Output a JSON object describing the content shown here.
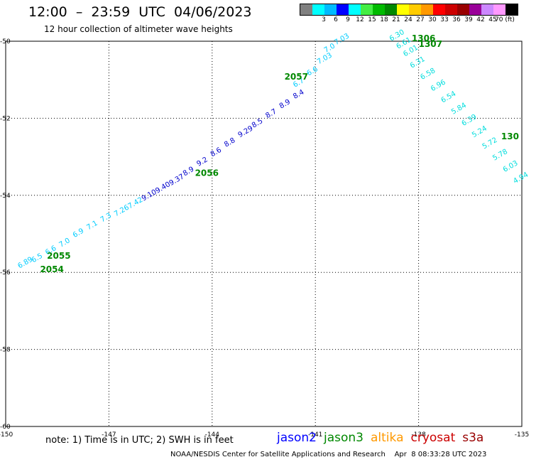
{
  "header": {
    "title": "12:00  –  23:59  UTC  04/06/2023",
    "subtitle": "12 hour collection of altimeter wave heights"
  },
  "scale": {
    "colors": [
      "#808080",
      "#00ffff",
      "#00bbff",
      "#0000ff",
      "#00ffff",
      "#44ee44",
      "#00bb00",
      "#008800",
      "#ffff00",
      "#ffcc00",
      "#ff9900",
      "#ff0000",
      "#cc0000",
      "#990000",
      "#990099",
      "#cc88ff",
      "#ff99ff",
      "#000000"
    ],
    "labels": [
      "3",
      "6",
      "9",
      "12",
      "15",
      "18",
      "21",
      "24",
      "27",
      "30",
      "33",
      "36",
      "39",
      "42",
      "45",
      "70 (ft)"
    ]
  },
  "axes": {
    "lon_ticks": [
      "-150",
      "-147",
      "-144",
      "-141",
      "-138",
      "-135"
    ],
    "lat_ticks": [
      "-50",
      "-52",
      "-54",
      "-56",
      "-58",
      "-60"
    ]
  },
  "tracks": [
    {
      "name": "jason2-left",
      "color": "#00ccff",
      "points": [
        {
          "lat": -55.9,
          "lon": -149.6,
          "text": "6.89"
        },
        {
          "lat": -55.75,
          "lon": -149.2,
          "text": "6.5"
        },
        {
          "lat": -55.55,
          "lon": -148.8,
          "text": "6.6"
        },
        {
          "lat": -55.35,
          "lon": -148.4,
          "text": "7.0"
        },
        {
          "lat": -55.1,
          "lon": -148.0,
          "text": "6.9"
        },
        {
          "lat": -54.9,
          "lon": -147.6,
          "text": "7.1"
        },
        {
          "lat": -54.7,
          "lon": -147.2,
          "text": "7.3"
        },
        {
          "lat": -54.55,
          "lon": -146.8,
          "text": "7.26"
        },
        {
          "lat": -54.35,
          "lon": -146.4,
          "text": "7.42"
        }
      ]
    },
    {
      "name": "jason2-mid",
      "color": "#0000cc",
      "points": [
        {
          "lat": -54.15,
          "lon": -146.0,
          "text": "9.10"
        },
        {
          "lat": -53.95,
          "lon": -145.6,
          "text": "9.40"
        },
        {
          "lat": -53.75,
          "lon": -145.2,
          "text": "9.37"
        },
        {
          "lat": -53.5,
          "lon": -144.8,
          "text": "8.9"
        },
        {
          "lat": -53.25,
          "lon": -144.4,
          "text": "9.2"
        },
        {
          "lat": -53.0,
          "lon": -144.0,
          "text": "8.6"
        },
        {
          "lat": -52.75,
          "lon": -143.6,
          "text": "8.8"
        },
        {
          "lat": -52.5,
          "lon": -143.2,
          "text": "9.29"
        },
        {
          "lat": -52.25,
          "lon": -142.8,
          "text": "8.5"
        },
        {
          "lat": -52.0,
          "lon": -142.4,
          "text": "8.7"
        },
        {
          "lat": -51.75,
          "lon": -142.0,
          "text": "8.9"
        },
        {
          "lat": -51.5,
          "lon": -141.6,
          "text": "8.4"
        }
      ]
    },
    {
      "name": "jason2-top",
      "color": "#00ccff",
      "points": [
        {
          "lat": -51.2,
          "lon": -141.6,
          "text": "6.7"
        },
        {
          "lat": -50.9,
          "lon": -141.2,
          "text": "6.6"
        },
        {
          "lat": -50.6,
          "lon": -140.9,
          "text": "7.03"
        },
        {
          "lat": -50.3,
          "lon": -140.7,
          "text": "7.0"
        },
        {
          "lat": -50.1,
          "lon": -140.4,
          "text": "7.03"
        }
      ]
    },
    {
      "name": "jason3-right",
      "color": "#00dddd",
      "points": [
        {
          "lat": -50.0,
          "lon": -138.8,
          "text": "6.30"
        },
        {
          "lat": -50.2,
          "lon": -138.6,
          "text": "6.61"
        },
        {
          "lat": -50.4,
          "lon": -138.4,
          "text": "6.01"
        },
        {
          "lat": -50.7,
          "lon": -138.2,
          "text": "6.31"
        },
        {
          "lat": -51.0,
          "lon": -137.9,
          "text": "6.58"
        },
        {
          "lat": -51.3,
          "lon": -137.6,
          "text": "6.96"
        },
        {
          "lat": -51.6,
          "lon": -137.3,
          "text": "6.54"
        },
        {
          "lat": -51.9,
          "lon": -137.0,
          "text": "5.84"
        },
        {
          "lat": -52.2,
          "lon": -136.7,
          "text": "6.39"
        },
        {
          "lat": -52.5,
          "lon": -136.4,
          "text": "5.24"
        },
        {
          "lat": -52.8,
          "lon": -136.1,
          "text": "5.72"
        },
        {
          "lat": -53.1,
          "lon": -135.8,
          "text": "5.78"
        },
        {
          "lat": -53.4,
          "lon": -135.5,
          "text": "6.03"
        },
        {
          "lat": -53.7,
          "lon": -135.2,
          "text": "4.94"
        }
      ]
    }
  ],
  "time_labels": [
    {
      "lat": -50.0,
      "lon": -138.2,
      "text": "1306"
    },
    {
      "lat": -50.15,
      "lon": -138.0,
      "text": "1307"
    },
    {
      "lat": -52.55,
      "lon": -135.6,
      "text": "130"
    },
    {
      "lat": -51.0,
      "lon": -141.9,
      "text": "2057"
    },
    {
      "lat": -53.5,
      "lon": -144.5,
      "text": "2056"
    },
    {
      "lat": -55.65,
      "lon": -148.8,
      "text": "2055"
    },
    {
      "lat": -56.0,
      "lon": -149.0,
      "text": "2054"
    }
  ],
  "note": "note:  1) Time is in UTC;  2) SWH is in feet",
  "satellites": [
    {
      "name": "jason2",
      "color": "#0000ff"
    },
    {
      "name": "jason3",
      "color": "#008800"
    },
    {
      "name": "altika",
      "color": "#ff9900"
    },
    {
      "name": "cryosat",
      "color": "#cc0000"
    },
    {
      "name": "s3a",
      "color": "#990000"
    }
  ],
  "credit": "NOAA/NESDIS Center for Satellite Applications and Research    Apr  8 08:33:28 UTC 2023"
}
